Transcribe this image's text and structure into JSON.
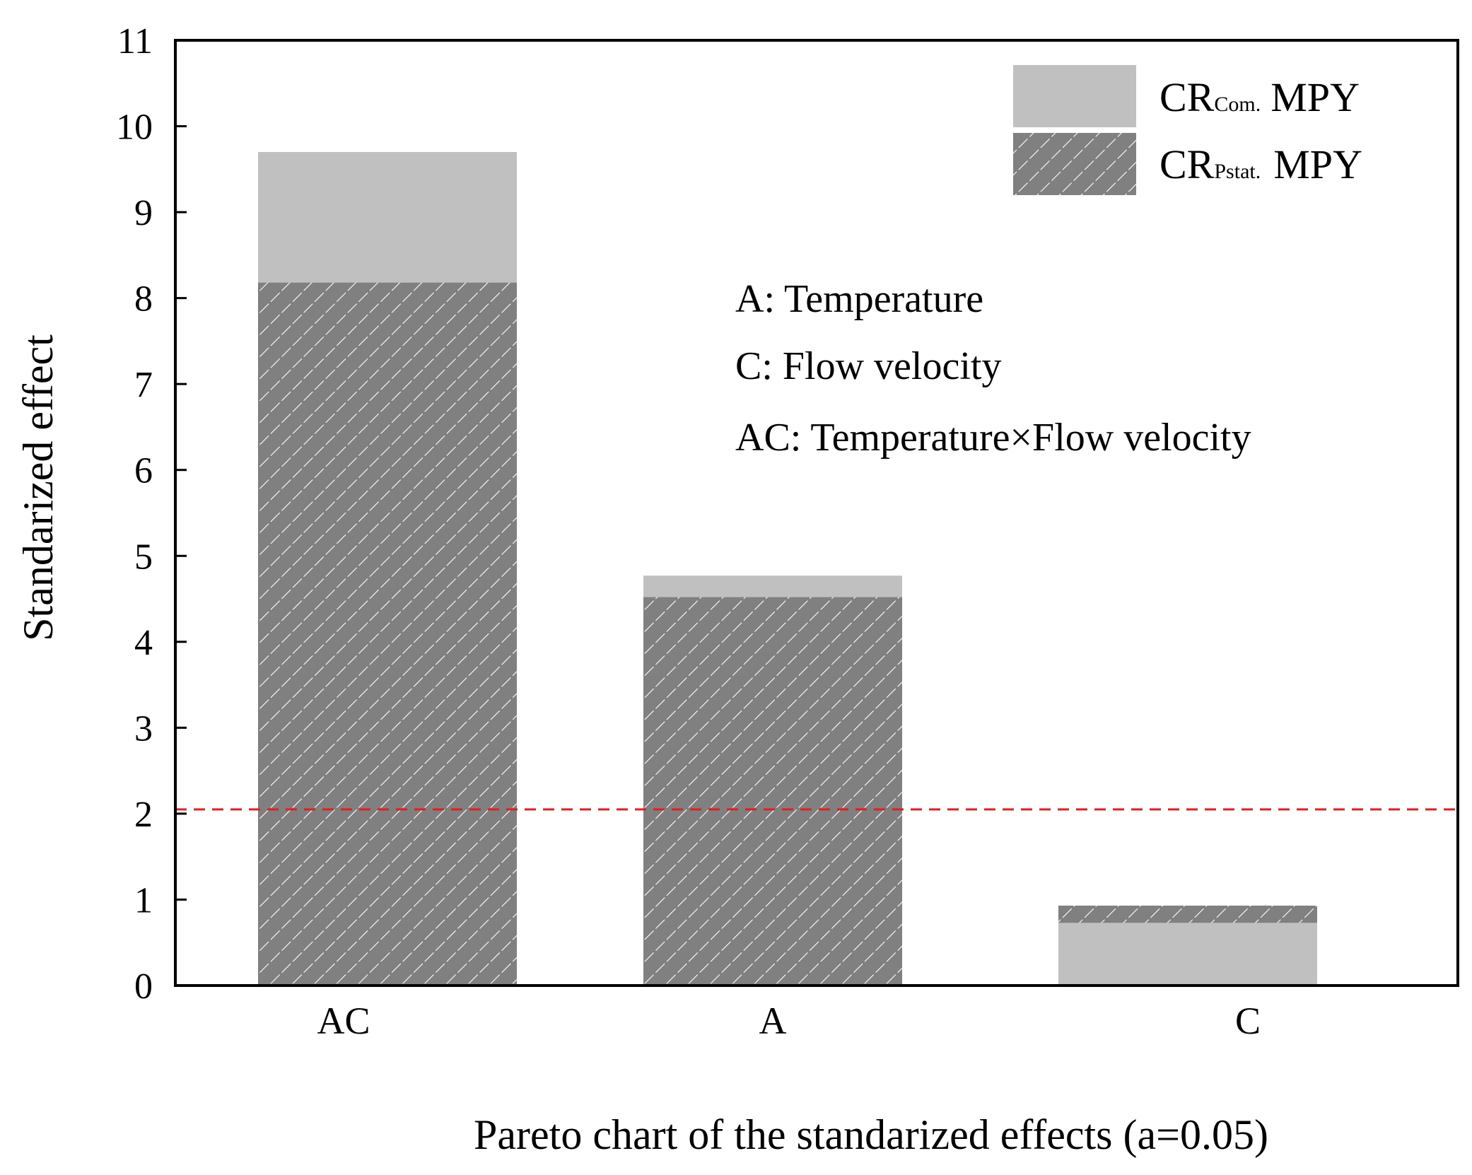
{
  "chart_data": {
    "type": "bar",
    "stacking": "overlay",
    "categories": [
      "AC",
      "A",
      "C"
    ],
    "series": [
      {
        "name": "CR_Com. MPY",
        "label_main": "CR",
        "label_sub": "Com.",
        "label_tail": "MPY",
        "color": "#c0c0c0",
        "pattern": "solid",
        "values": [
          9.7,
          4.77,
          0.73
        ]
      },
      {
        "name": "CR_Pstat. MPY",
        "label_main": "CR",
        "label_sub": "Pstat.",
        "label_tail": "MPY",
        "color": "#808080",
        "pattern": "hatch",
        "values": [
          8.18,
          4.52,
          0.93
        ]
      }
    ],
    "reference_line": {
      "value": 2.05,
      "color": "#e02020",
      "style": "dashed"
    },
    "ylim": [
      0,
      11
    ],
    "yticks": [
      "0",
      "1",
      "2",
      "3",
      "4",
      "5",
      "6",
      "7",
      "8",
      "9",
      "10",
      "11"
    ],
    "ylabel": "Standarized effect",
    "xlabel": "Pareto chart of the standarized effects (a=0.05)",
    "legend_position": "top-right",
    "annotations": [
      "A: Temperature",
      "C: Flow velocity",
      "AC: Temperature×Flow velocity"
    ]
  }
}
